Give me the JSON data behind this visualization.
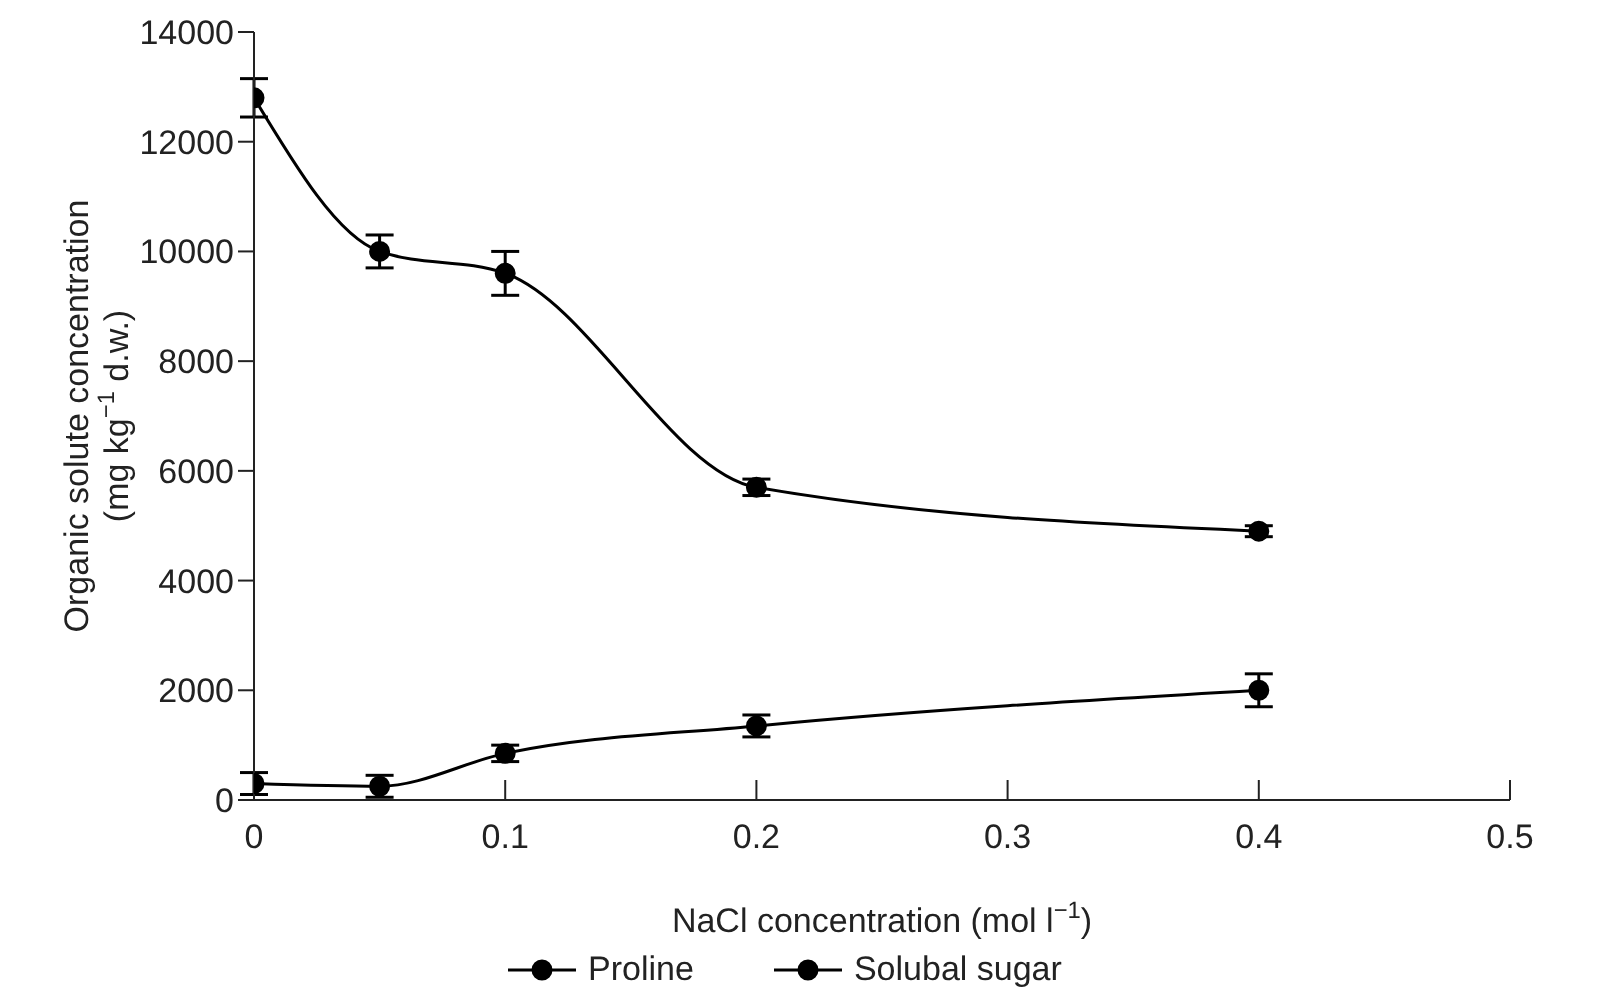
{
  "chart_data": {
    "type": "line",
    "xlabel": "NaCl concentration (mol l$^{−1}$)",
    "ylabel": "Organic solute concentration\n(mg kg$^{−1}$ d.w.)",
    "x": [
      0,
      0.05,
      0.1,
      0.2,
      0.4
    ],
    "series": [
      {
        "name": "Proline",
        "color": "#000000",
        "values": [
          300,
          250,
          850,
          1350,
          2000
        ],
        "errors": [
          200,
          200,
          150,
          200,
          300
        ]
      },
      {
        "name": "Solubal sugar",
        "color": "#000000",
        "values": [
          12800,
          10000,
          9600,
          5700,
          4900
        ],
        "errors": [
          350,
          300,
          400,
          150,
          100
        ]
      }
    ],
    "xlim": [
      0,
      0.5
    ],
    "xticks": [
      0,
      0.1,
      0.2,
      0.3,
      0.4,
      0.5
    ],
    "ylim": [
      0,
      14000
    ],
    "yticks": [
      0,
      2000,
      4000,
      6000,
      8000,
      10000,
      12000,
      14000
    ],
    "grid": false,
    "legend": "bottom",
    "marker": "circle",
    "line_style": "solid"
  }
}
